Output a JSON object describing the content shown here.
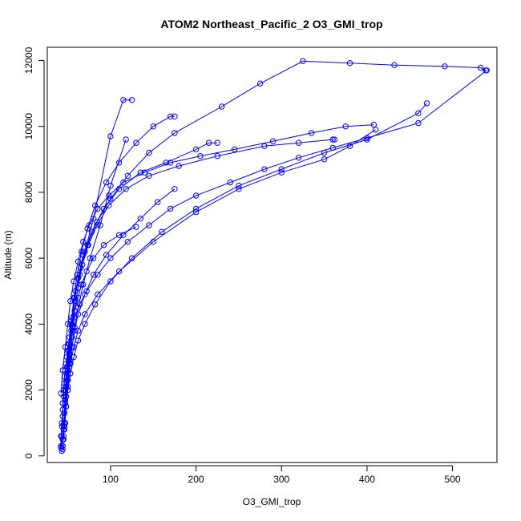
{
  "chart_data": {
    "type": "line",
    "title": "ATOM2 Northeast_Pacific_2 O3_GMI_trop",
    "xlabel": "O3_GMI_trop",
    "ylabel": "Altitude (m)",
    "xlim": [
      26,
      552
    ],
    "ylim": [
      -200,
      12400
    ],
    "x_ticks": [
      100,
      200,
      300,
      400,
      500
    ],
    "y_ticks": [
      0,
      2000,
      4000,
      6000,
      8000,
      10000,
      12000
    ],
    "line_color": "#0000ff",
    "marker": "open-circle",
    "grid": false,
    "series": [
      {
        "x": [
          43,
          42,
          42,
          43,
          44,
          44,
          45,
          46,
          48,
          50,
          52,
          55,
          58,
          62,
          66,
          72,
          80,
          92,
          110,
          130
        ],
        "y": [
          150,
          300,
          600,
          900,
          1200,
          1600,
          2000,
          2400,
          2800,
          3200,
          3600,
          4000,
          4400,
          4800,
          5200,
          5600,
          6000,
          6400,
          6700,
          6950
        ]
      },
      {
        "x": [
          44,
          44,
          45,
          46,
          47,
          48,
          50,
          52,
          55,
          58,
          62,
          70,
          80,
          95,
          115,
          135,
          155,
          175
        ],
        "y": [
          200,
          500,
          900,
          1300,
          1700,
          2100,
          2500,
          2900,
          3300,
          3800,
          4300,
          4900,
          5500,
          6100,
          6700,
          7200,
          7700,
          8100
        ]
      },
      {
        "x": [
          42,
          43,
          43,
          44,
          45,
          46,
          47,
          49,
          51,
          54,
          58,
          64,
          72,
          85,
          100,
          120,
          145,
          170,
          200,
          240,
          280,
          320,
          360,
          400,
          460,
          540
        ],
        "y": [
          250,
          600,
          1000,
          1400,
          1800,
          2200,
          2600,
          3000,
          3400,
          3800,
          4200,
          4600,
          5000,
          5500,
          6000,
          6500,
          7000,
          7500,
          7900,
          8300,
          8700,
          9050,
          9350,
          9650,
          10100,
          11700
        ]
      },
      {
        "x": [
          44,
          45,
          46,
          48,
          50,
          53,
          57,
          62,
          70,
          85,
          110,
          150,
          200,
          250,
          300,
          350,
          380,
          410
        ],
        "y": [
          300,
          800,
          1300,
          1800,
          2300,
          2800,
          3300,
          3800,
          4300,
          4900,
          5600,
          6500,
          7400,
          8100,
          8600,
          9000,
          9400,
          9900
        ]
      },
      {
        "x": [
          45,
          46,
          48,
          50,
          53,
          57,
          62,
          70,
          82,
          100,
          125,
          160,
          200,
          250,
          300,
          350,
          400,
          460,
          470
        ],
        "y": [
          500,
          1000,
          1500,
          2000,
          2500,
          3000,
          3500,
          4000,
          4600,
          5300,
          6000,
          6800,
          7500,
          8200,
          8700,
          9200,
          9600,
          10400,
          10700
        ]
      },
      {
        "x": [
          44,
          46,
          48,
          50,
          52,
          55,
          58,
          62,
          68,
          76,
          88,
          100,
          118
        ],
        "y": [
          300,
          900,
          1500,
          2100,
          2700,
          3300,
          3900,
          4500,
          5200,
          6000,
          7000,
          8200,
          9600
        ]
      },
      {
        "x": [
          45,
          46,
          47,
          49,
          51,
          54,
          58,
          64,
          70,
          80,
          100,
          115,
          125
        ],
        "y": [
          600,
          1300,
          2000,
          2700,
          3400,
          4100,
          4800,
          5500,
          6200,
          7200,
          9700,
          10800,
          10800
        ]
      },
      {
        "x": [
          46,
          47,
          49,
          51,
          54,
          57,
          61,
          66,
          73,
          82,
          95,
          110,
          130,
          150,
          170,
          175
        ],
        "y": [
          800,
          1600,
          2400,
          3200,
          4000,
          4800,
          5500,
          6200,
          6900,
          7600,
          8300,
          8900,
          9500,
          10000,
          10300,
          10300
        ]
      },
      {
        "x": [
          47,
          48,
          50,
          52,
          55,
          59,
          65,
          73,
          84,
          100,
          120,
          145,
          175,
          230,
          275,
          325,
          380,
          432,
          491,
          533,
          539
        ],
        "y": [
          1000,
          1800,
          2600,
          3400,
          4200,
          5000,
          5700,
          6400,
          7100,
          7800,
          8500,
          9200,
          9800,
          10600,
          11300,
          11980,
          11920,
          11860,
          11820,
          11780,
          11700
        ]
      },
      {
        "x": [
          48,
          50,
          52,
          55,
          58,
          62,
          68,
          78,
          92,
          110,
          135,
          165,
          200,
          215,
          225
        ],
        "y": [
          1500,
          2300,
          3100,
          3900,
          4700,
          5400,
          6100,
          6800,
          7500,
          8100,
          8600,
          8900,
          9300,
          9500,
          9500
        ]
      },
      {
        "x": [
          50,
          52,
          55,
          58,
          62,
          67,
          74,
          84,
          98,
          118,
          145,
          180,
          225,
          280,
          320,
          360,
          362
        ],
        "y": [
          2000,
          2800,
          3600,
          4400,
          5100,
          5800,
          6400,
          7000,
          7600,
          8100,
          8500,
          8800,
          9100,
          9400,
          9500,
          9600,
          9600
        ]
      },
      {
        "x": [
          42,
          44,
          47,
          50,
          53,
          57,
          62,
          68,
          75,
          85,
          98,
          115,
          140,
          170,
          205,
          245,
          290,
          335,
          375,
          408
        ],
        "y": [
          1900,
          2600,
          3300,
          4000,
          4700,
          5300,
          5900,
          6500,
          7000,
          7500,
          7900,
          8300,
          8600,
          8900,
          9100,
          9300,
          9550,
          9800,
          10000,
          10050
        ]
      }
    ]
  }
}
